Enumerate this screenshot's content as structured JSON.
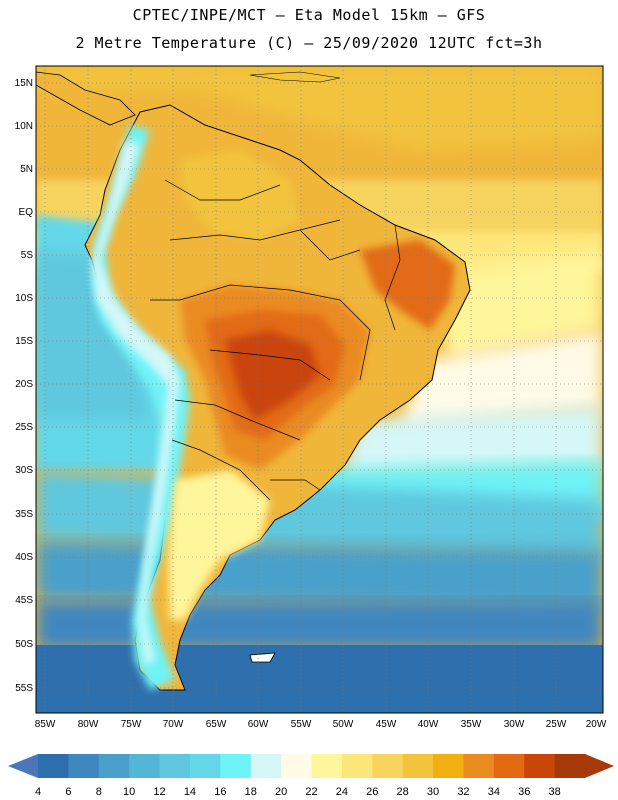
{
  "header": {
    "line1": "CPTEC/INPE/MCT —   Eta Model 15km — GFS",
    "line2": "2 Metre Temperature (C) — 25/09/2020 12UTC fct=3h"
  },
  "map": {
    "lat_labels": [
      "15N",
      "10N",
      "5N",
      "EQ",
      "5S",
      "10S",
      "15S",
      "20S",
      "25S",
      "30S",
      "35S",
      "40S",
      "45S",
      "50S",
      "55S"
    ],
    "lon_labels": [
      "85W",
      "80W",
      "75W",
      "70W",
      "65W",
      "60W",
      "55W",
      "50W",
      "45W",
      "40W",
      "35W",
      "30W",
      "25W",
      "20W"
    ]
  },
  "colorbar": {
    "labels": [
      "4",
      "6",
      "8",
      "10",
      "12",
      "14",
      "16",
      "18",
      "20",
      "22",
      "24",
      "26",
      "28",
      "30",
      "32",
      "34",
      "36",
      "38"
    ],
    "colors": [
      "#2e6fae",
      "#3f87bf",
      "#4aa0cb",
      "#54b6d6",
      "#5fc7de",
      "#64d8e8",
      "#6ef3f7",
      "#d6f7f8",
      "#fffbe6",
      "#fff59a",
      "#fde77a",
      "#f7d45e",
      "#f2c43c",
      "#f0b012",
      "#ea8b20",
      "#e36a12",
      "#c94508",
      "#a83908"
    ],
    "arrow_left": "#4a77b8",
    "arrow_right": "#a83908"
  }
}
